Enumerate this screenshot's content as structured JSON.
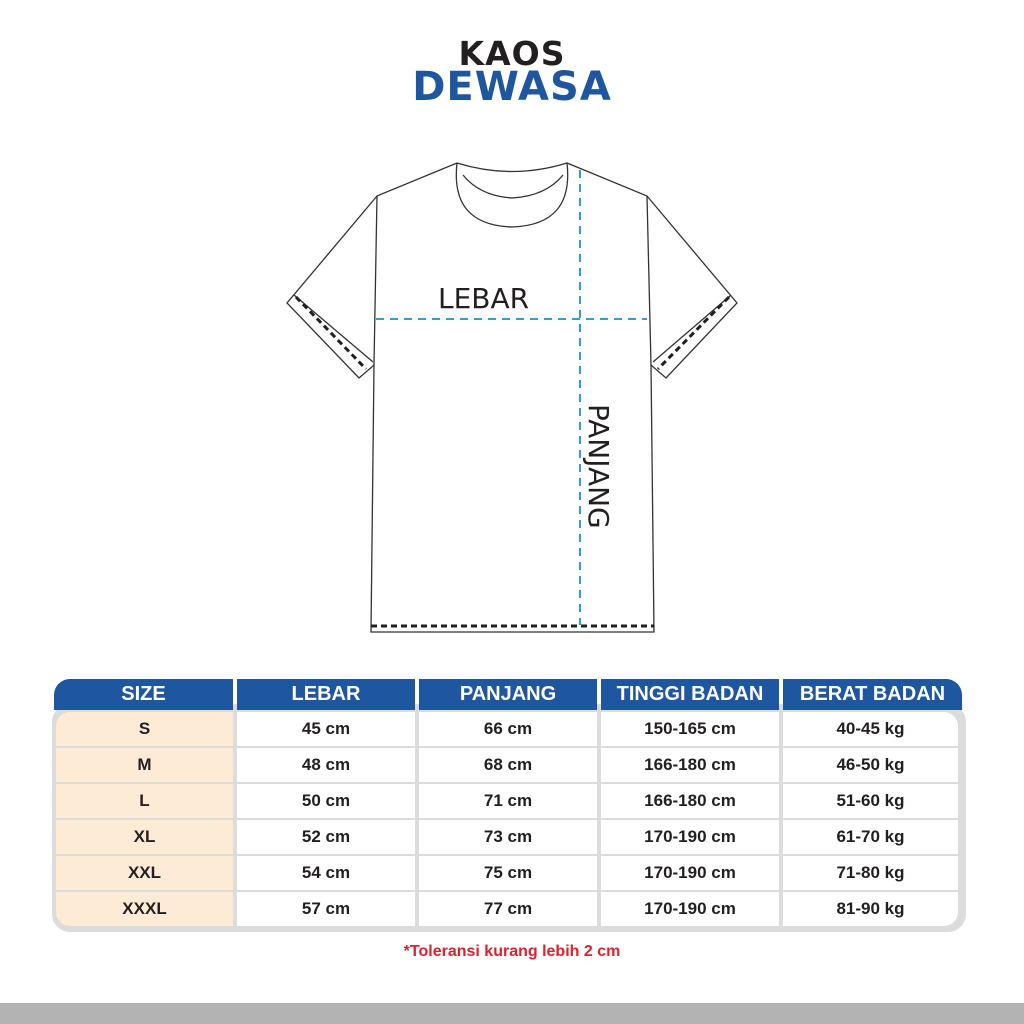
{
  "title": {
    "line1": "KAOS",
    "line2": "DEWASA"
  },
  "diagram": {
    "width_label": "LEBAR",
    "length_label": "PANJANG"
  },
  "table": {
    "headers": [
      "SIZE",
      "LEBAR",
      "PANJANG",
      "TINGGI BADAN",
      "BERAT BADAN"
    ],
    "rows": [
      [
        "S",
        "45 cm",
        "66 cm",
        "150-165 cm",
        "40-45 kg"
      ],
      [
        "M",
        "48 cm",
        "68 cm",
        "166-180 cm",
        "46-50 kg"
      ],
      [
        "L",
        "50 cm",
        "71 cm",
        "166-180 cm",
        "51-60 kg"
      ],
      [
        "XL",
        "52 cm",
        "73 cm",
        "170-190 cm",
        "61-70 kg"
      ],
      [
        "XXL",
        "54 cm",
        "75 cm",
        "170-190 cm",
        "71-80 kg"
      ],
      [
        "XXXL",
        "57 cm",
        "77 cm",
        "170-190 cm",
        "81-90 kg"
      ]
    ]
  },
  "note": "*Toleransi kurang lebih 2 cm",
  "colors": {
    "brand_blue": "#1e56a0",
    "size_column": "#fdebd6",
    "note_red": "#e0202e",
    "measure_line": "#2aa3d0"
  }
}
